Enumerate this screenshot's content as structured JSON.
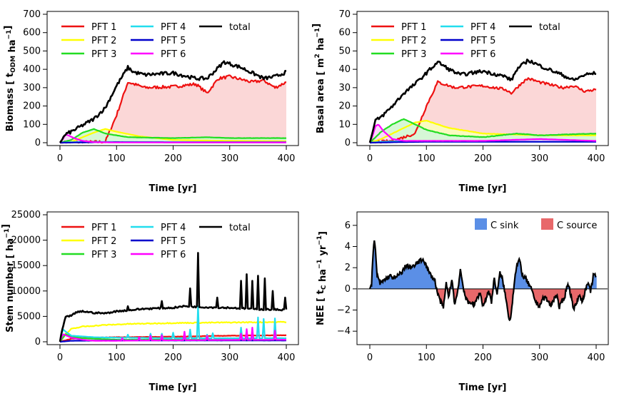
{
  "chart_data": [
    {
      "type": "line",
      "xlabel": "Time [yr]",
      "ylabel": "Biomass [t_ODM ha^-1]",
      "ylabel_parts": {
        "a": "Biomass [ t",
        "sub": "ODM",
        "b": "ha",
        "sup": "−1",
        "c": "]"
      },
      "xlim": [
        0,
        400
      ],
      "ylim": [
        0,
        700
      ],
      "xticks": [
        "0",
        "100",
        "200",
        "300",
        "400"
      ],
      "yticks": [
        "0",
        "100",
        "200",
        "300",
        "400",
        "500",
        "600",
        "700"
      ],
      "legend": [
        "PFT 1",
        "PFT 2",
        "PFT 3",
        "PFT 4",
        "PFT 5",
        "PFT 6",
        "total"
      ],
      "series": [
        {
          "name": "PFT 1",
          "color": "#ee1111",
          "shade": "#fbd7d7",
          "x": [
            0,
            40,
            80,
            100,
            120,
            150,
            200,
            240,
            250,
            260,
            280,
            300,
            340,
            360,
            380,
            400
          ],
          "y": [
            0,
            2,
            5,
            150,
            330,
            300,
            305,
            320,
            295,
            270,
            350,
            360,
            330,
            340,
            300,
            330
          ]
        },
        {
          "name": "PFT 2",
          "color": "#ffff00",
          "shade": "#fafac0",
          "x": [
            0,
            20,
            40,
            60,
            80,
            100,
            140,
            200,
            300,
            400
          ],
          "y": [
            0,
            5,
            30,
            55,
            75,
            60,
            35,
            15,
            10,
            8
          ]
        },
        {
          "name": "PFT 3",
          "color": "#22dd22",
          "shade": "#d6f7d6",
          "x": [
            0,
            20,
            40,
            60,
            80,
            120,
            200,
            260,
            300,
            400
          ],
          "y": [
            0,
            15,
            55,
            75,
            50,
            30,
            25,
            30,
            25,
            25
          ]
        },
        {
          "name": "PFT 4",
          "color": "#22ddee",
          "x": [
            0,
            20,
            60,
            100,
            200,
            400
          ],
          "y": [
            0,
            3,
            5,
            4,
            3,
            3
          ]
        },
        {
          "name": "PFT 5",
          "color": "#0000cc",
          "x": [
            0,
            50,
            100,
            200,
            400
          ],
          "y": [
            0,
            2,
            3,
            2,
            2
          ]
        },
        {
          "name": "PFT 6",
          "color": "#ff00ff",
          "shade": "#fadafa",
          "x": [
            0,
            5,
            10,
            15,
            25,
            40,
            60,
            100,
            400
          ],
          "y": [
            0,
            20,
            45,
            40,
            25,
            10,
            3,
            1,
            1
          ]
        },
        {
          "name": "total",
          "color": "#000000",
          "x": [
            0,
            10,
            20,
            40,
            60,
            80,
            100,
            120,
            130,
            150,
            200,
            240,
            260,
            290,
            320,
            360,
            380,
            400
          ],
          "y": [
            0,
            45,
            60,
            95,
            130,
            190,
            310,
            410,
            385,
            370,
            380,
            350,
            350,
            440,
            410,
            350,
            360,
            385
          ]
        }
      ]
    },
    {
      "type": "line",
      "xlabel": "Time [yr]",
      "ylabel": "Basal area [m^2 ha^-1]",
      "ylabel_parts": {
        "a": "Basal area [ m",
        "sup1": "2",
        "b": "ha",
        "sup": "−1",
        "c": "]"
      },
      "xlim": [
        0,
        400
      ],
      "ylim": [
        0,
        70
      ],
      "xticks": [
        "0",
        "100",
        "200",
        "300",
        "400"
      ],
      "yticks": [
        "0",
        "10",
        "20",
        "30",
        "40",
        "50",
        "60",
        "70"
      ],
      "legend": [
        "PFT 1",
        "PFT 2",
        "PFT 3",
        "PFT 4",
        "PFT 5",
        "PFT 6",
        "total"
      ],
      "series": [
        {
          "name": "PFT 1",
          "color": "#ee1111",
          "shade": "#fbd7d7",
          "x": [
            0,
            40,
            80,
            100,
            120,
            150,
            200,
            240,
            250,
            270,
            280,
            300,
            340,
            360,
            380,
            400
          ],
          "y": [
            0,
            1,
            5,
            20,
            33,
            30,
            31,
            29,
            27,
            33,
            35,
            33,
            30,
            31,
            28,
            29
          ]
        },
        {
          "name": "PFT 2",
          "color": "#ffff00",
          "shade": "#fafac0",
          "x": [
            0,
            20,
            40,
            60,
            80,
            100,
            140,
            200,
            300,
            400
          ],
          "y": [
            0,
            2,
            5,
            8,
            11,
            12,
            8,
            5,
            4,
            4
          ]
        },
        {
          "name": "PFT 3",
          "color": "#22dd22",
          "shade": "#d6f7d6",
          "x": [
            0,
            10,
            20,
            40,
            60,
            80,
            100,
            140,
            200,
            260,
            300,
            400
          ],
          "y": [
            0,
            3,
            6,
            10,
            13,
            10,
            7,
            4,
            3,
            5,
            4,
            5
          ]
        },
        {
          "name": "PFT 4",
          "color": "#22ddee",
          "x": [
            0,
            20,
            60,
            100,
            200,
            400
          ],
          "y": [
            0,
            0.5,
            0.8,
            0.6,
            0.5,
            0.5
          ]
        },
        {
          "name": "PFT 5",
          "color": "#0000cc",
          "x": [
            0,
            50,
            100,
            200,
            400
          ],
          "y": [
            0,
            0.3,
            0.5,
            0.5,
            0.5
          ]
        },
        {
          "name": "PFT 6",
          "color": "#ff00ff",
          "shade": "#fadafa",
          "x": [
            0,
            5,
            10,
            15,
            25,
            40,
            60,
            100,
            200,
            300,
            400
          ],
          "y": [
            0,
            4,
            9,
            10,
            6,
            2,
            1,
            1,
            1,
            2,
            1
          ]
        },
        {
          "name": "total",
          "color": "#000000",
          "x": [
            0,
            10,
            20,
            40,
            60,
            80,
            100,
            120,
            140,
            160,
            200,
            240,
            250,
            260,
            280,
            300,
            340,
            360,
            380,
            400
          ],
          "y": [
            0,
            12,
            14,
            20,
            27,
            32,
            38,
            44,
            40,
            37,
            39,
            36,
            34,
            40,
            45,
            42,
            37,
            34,
            37,
            38
          ]
        }
      ]
    },
    {
      "type": "line",
      "xlabel": "Time [yr]",
      "ylabel": "Stem number [ha^-1]",
      "ylabel_parts": {
        "a": "Stem number [ ha",
        "sup": "−1",
        "c": "]"
      },
      "xlim": [
        0,
        400
      ],
      "ylim": [
        0,
        25000
      ],
      "xticks": [
        "0",
        "100",
        "200",
        "300",
        "400"
      ],
      "yticks": [
        "0",
        "5000",
        "10000",
        "15000",
        "20000",
        "25000"
      ],
      "legend": [
        "PFT 1",
        "PFT 2",
        "PFT 3",
        "PFT 4",
        "PFT 5",
        "PFT 6",
        "total"
      ],
      "series": [
        {
          "name": "PFT 1",
          "color": "#ee1111",
          "x": [
            0,
            20,
            50,
            100,
            200,
            300,
            400
          ],
          "y": [
            0,
            600,
            800,
            900,
            1000,
            1200,
            1300
          ]
        },
        {
          "name": "PFT 2",
          "color": "#ffff00",
          "x": [
            0,
            10,
            20,
            40,
            80,
            120,
            200,
            300,
            400
          ],
          "y": [
            0,
            1500,
            2500,
            3000,
            3300,
            3500,
            3700,
            3800,
            3900
          ]
        },
        {
          "name": "PFT 3",
          "color": "#22dd22",
          "x": [
            0,
            10,
            20,
            40,
            80,
            100,
            200,
            400
          ],
          "y": [
            0,
            1500,
            1000,
            700,
            500,
            400,
            400,
            400
          ]
        },
        {
          "name": "PFT 4",
          "color": "#22ddee",
          "x": [
            0,
            5,
            10,
            20,
            60,
            100,
            200,
            400
          ],
          "y": [
            0,
            2500,
            2000,
            1200,
            900,
            800,
            700,
            700
          ],
          "spikes": [
            [
              120,
              1400
            ],
            [
              160,
              1600
            ],
            [
              180,
              1600
            ],
            [
              200,
              1800
            ],
            [
              215,
              1500
            ],
            [
              230,
              2400
            ],
            [
              244,
              7000
            ],
            [
              260,
              1400
            ],
            [
              270,
              1700
            ],
            [
              320,
              2800
            ],
            [
              335,
              3500
            ],
            [
              345,
              3700
            ],
            [
              350,
              4800
            ],
            [
              360,
              4500
            ],
            [
              380,
              4600
            ]
          ]
        },
        {
          "name": "PFT 5",
          "color": "#0000cc",
          "x": [
            0,
            20,
            100,
            400
          ],
          "y": [
            0,
            200,
            250,
            250
          ]
        },
        {
          "name": "PFT 6",
          "color": "#ff00ff",
          "x": [
            0,
            5,
            10,
            20,
            40,
            60,
            100,
            200,
            400
          ],
          "y": [
            0,
            1500,
            1300,
            800,
            400,
            200,
            200,
            300,
            400
          ],
          "spikes": [
            [
              110,
              700
            ],
            [
              140,
              900
            ],
            [
              160,
              1200
            ],
            [
              180,
              1300
            ],
            [
              205,
              1500
            ],
            [
              220,
              2000
            ],
            [
              235,
              2200
            ],
            [
              245,
              2500
            ],
            [
              260,
              1200
            ],
            [
              275,
              1500
            ],
            [
              320,
              1600
            ],
            [
              330,
              2500
            ],
            [
              340,
              2800
            ],
            [
              355,
              3000
            ],
            [
              365,
              2000
            ],
            [
              380,
              2200
            ]
          ]
        },
        {
          "name": "total",
          "color": "#000000",
          "x": [
            0,
            3,
            10,
            20,
            30,
            40,
            60,
            80,
            100,
            150,
            200,
            220,
            260,
            300,
            350,
            400
          ],
          "y": [
            0,
            2000,
            4800,
            5200,
            5800,
            6000,
            5700,
            5600,
            6000,
            6500,
            6700,
            7000,
            6800,
            6700,
            6400,
            6300
          ],
          "spikes": [
            [
              120,
              7000
            ],
            [
              155,
              7800
            ],
            [
              180,
              8000
            ],
            [
              205,
              8800
            ],
            [
              215,
              9500
            ],
            [
              230,
              10500
            ],
            [
              244,
              17500
            ],
            [
              265,
              9800
            ],
            [
              278,
              8700
            ],
            [
              320,
              12000
            ],
            [
              330,
              13300
            ],
            [
              340,
              12000
            ],
            [
              350,
              13000
            ],
            [
              362,
              12500
            ],
            [
              376,
              10000
            ],
            [
              398,
              8700
            ]
          ]
        }
      ]
    },
    {
      "type": "area",
      "xlabel": "Time [yr]",
      "ylabel": "NEE [t_C ha^-1 yr^-1]",
      "ylabel_parts": {
        "a": "NEE [ t",
        "sub": "C",
        "b": "ha",
        "sup": "−1",
        "d": "yr",
        "sup2": "−1",
        "c": "]"
      },
      "xlim": [
        0,
        400
      ],
      "ylim": [
        -5,
        7
      ],
      "xticks": [
        "0",
        "100",
        "200",
        "300",
        "400"
      ],
      "yticks": [
        "−4",
        "−2",
        "0",
        "2",
        "4",
        "6"
      ],
      "legend": [
        {
          "label": "C sink",
          "color": "#5b8fe6"
        },
        {
          "label": "C source",
          "color": "#e8686a"
        }
      ],
      "x": [
        0,
        3,
        6,
        8,
        10,
        13,
        18,
        25,
        35,
        45,
        55,
        65,
        75,
        85,
        95,
        105,
        115,
        120,
        125,
        130,
        135,
        140,
        145,
        150,
        155,
        160,
        165,
        170,
        175,
        180,
        185,
        190,
        195,
        200,
        205,
        210,
        215,
        220,
        225,
        230,
        235,
        240,
        245,
        248,
        252,
        256,
        260,
        265,
        270,
        275,
        280,
        285,
        290,
        295,
        300,
        305,
        310,
        315,
        320,
        325,
        330,
        335,
        340,
        345,
        350,
        355,
        360,
        365,
        370,
        375,
        380,
        385,
        390,
        395,
        400
      ],
      "values": [
        0,
        0.5,
        3.5,
        4.6,
        3.5,
        1.2,
        0.5,
        0.8,
        1.2,
        1.0,
        1.5,
        2.2,
        2.0,
        2.5,
        2.8,
        1.5,
        0.8,
        -0.5,
        -1.2,
        -1.8,
        0.5,
        -0.8,
        1.0,
        -1.5,
        -0.3,
        1.8,
        0.2,
        -1.0,
        -1.4,
        -1.2,
        -1.6,
        -0.8,
        -0.4,
        -1.6,
        -1.0,
        -0.2,
        -1.2,
        1.0,
        -0.5,
        1.5,
        0.8,
        -0.8,
        -2.5,
        -3.0,
        -1.2,
        1.0,
        2.2,
        2.7,
        1.2,
        1.0,
        0.5,
        0.0,
        -0.8,
        -1.4,
        -1.6,
        -1.0,
        -0.8,
        -1.2,
        -1.6,
        -1.0,
        -0.5,
        -1.8,
        -1.2,
        -0.6,
        0.6,
        -0.5,
        -1.8,
        -1.5,
        -0.5,
        -1.2,
        -0.3,
        0.5,
        -0.2,
        1.2,
        1.3
      ]
    }
  ]
}
